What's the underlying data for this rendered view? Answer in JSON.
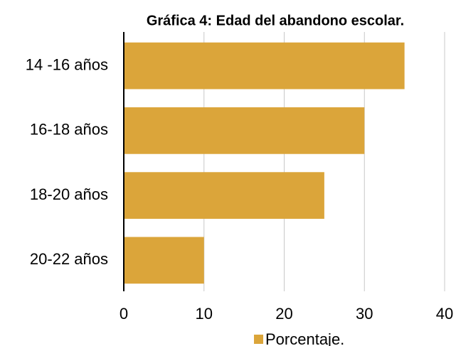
{
  "chart_data": {
    "type": "bar",
    "orientation": "horizontal",
    "title": "Gráfica 4: Edad del abandono escolar.",
    "categories": [
      "14 -16 años",
      "16-18 años",
      "18-20 años",
      "20-22 años"
    ],
    "series": [
      {
        "name": "Porcentaje.",
        "color": "#dba53a",
        "values": [
          35,
          30,
          25,
          10
        ]
      }
    ],
    "xlim": [
      0,
      40
    ],
    "xticks": [
      0,
      10,
      20,
      30,
      40
    ],
    "grid": true,
    "legend": "bottom"
  }
}
